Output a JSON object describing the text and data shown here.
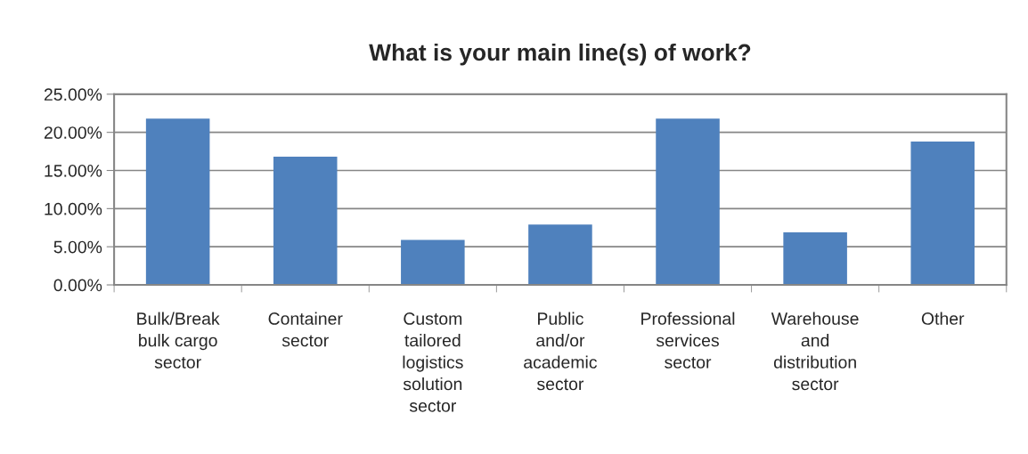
{
  "chart_data": {
    "type": "bar",
    "title": "What is your main line(s) of work?",
    "categories": [
      "Bulk/Break bulk cargo sector",
      "Container sector",
      "Custom tailored logistics solution sector",
      "Public and/or academic sector",
      "Professional services sector",
      "Warehouse and distribution sector",
      "Other"
    ],
    "values": [
      21.8,
      16.8,
      5.9,
      7.9,
      21.8,
      6.9,
      18.8
    ],
    "color": "#4f81bd",
    "ylim": [
      0,
      25
    ],
    "yticks": [
      {
        "value": 0,
        "label": "0.00%"
      },
      {
        "value": 5,
        "label": "5.00%"
      },
      {
        "value": 10,
        "label": "10.00%"
      },
      {
        "value": 15,
        "label": "15.00%"
      },
      {
        "value": 20,
        "label": "20.00%"
      },
      {
        "value": 25,
        "label": "25.00%"
      }
    ],
    "grid": "y"
  }
}
